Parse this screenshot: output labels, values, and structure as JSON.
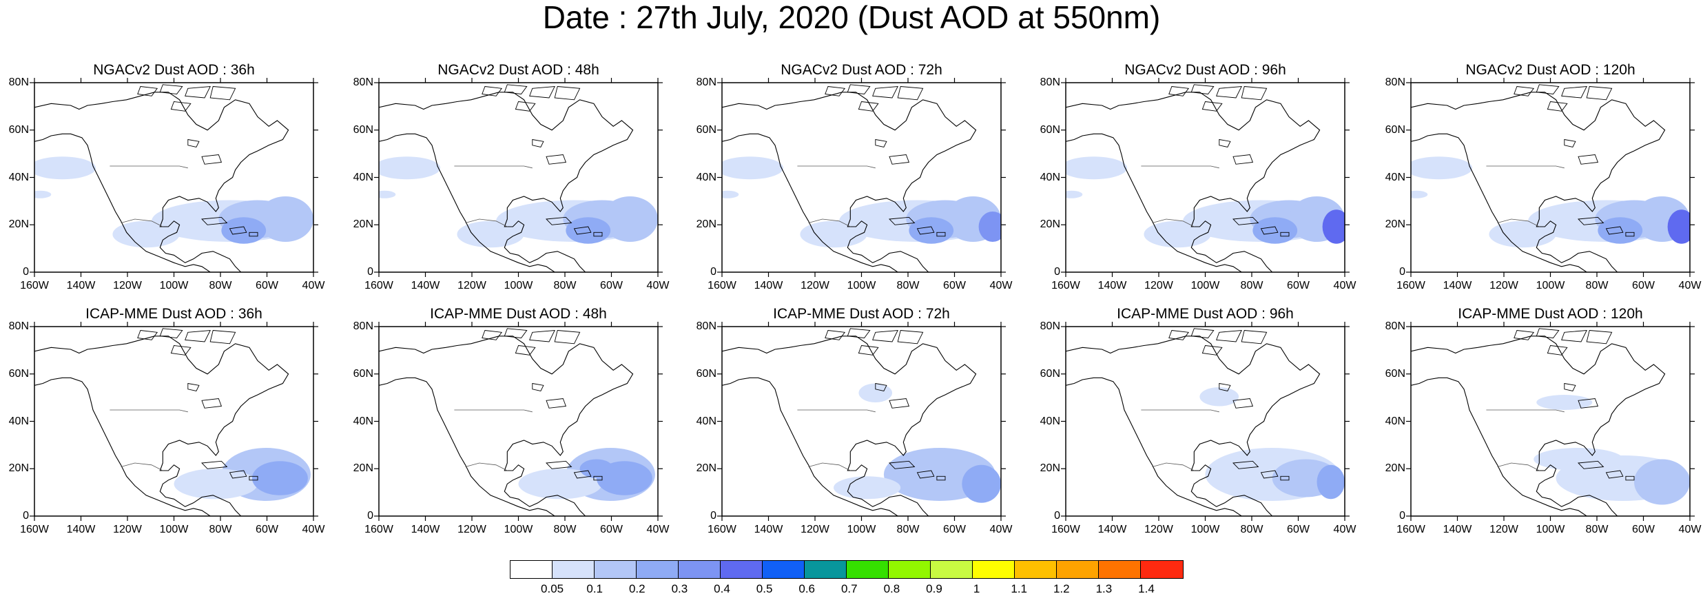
{
  "title": "Date : 27th July, 2020 (Dust AOD at 550nm)",
  "panels": [
    {
      "id": "ngac-36",
      "title": "NGACv2 Dust AOD : 36h"
    },
    {
      "id": "ngac-48",
      "title": "NGACv2 Dust AOD : 48h"
    },
    {
      "id": "ngac-72",
      "title": "NGACv2 Dust AOD : 72h"
    },
    {
      "id": "ngac-96",
      "title": "NGACv2 Dust AOD : 96h"
    },
    {
      "id": "ngac-120",
      "title": "NGACv2 Dust AOD : 120h"
    },
    {
      "id": "icap-36",
      "title": "ICAP-MME Dust AOD : 36h"
    },
    {
      "id": "icap-48",
      "title": "ICAP-MME Dust AOD : 48h"
    },
    {
      "id": "icap-72",
      "title": "ICAP-MME Dust AOD : 72h"
    },
    {
      "id": "icap-96",
      "title": "ICAP-MME Dust AOD : 96h"
    },
    {
      "id": "icap-120",
      "title": "ICAP-MME Dust AOD : 120h"
    }
  ],
  "lat_ticks": [
    "80N",
    "60N",
    "40N",
    "20N",
    "0"
  ],
  "lon_ticks": [
    "160W",
    "140W",
    "120W",
    "100W",
    "80W",
    "60W",
    "40W"
  ],
  "map_extent": {
    "lon": [
      -160,
      -40
    ],
    "lat": [
      0,
      80
    ]
  },
  "colorbar": {
    "labels": [
      "0.05",
      "0.1",
      "0.2",
      "0.3",
      "0.4",
      "0.5",
      "0.6",
      "0.7",
      "0.8",
      "0.9",
      "1",
      "1.1",
      "1.2",
      "1.3",
      "1.4"
    ],
    "colors": [
      "#ffffff",
      "#d6e2fb",
      "#b3c7f7",
      "#8fabf5",
      "#7d94f3",
      "#5f6af0",
      "#1160f6",
      "#08969c",
      "#35e000",
      "#92f700",
      "#c8fa42",
      "#fefe00",
      "#fec000",
      "#fea300",
      "#fe7300",
      "#fe2a10"
    ]
  }
}
